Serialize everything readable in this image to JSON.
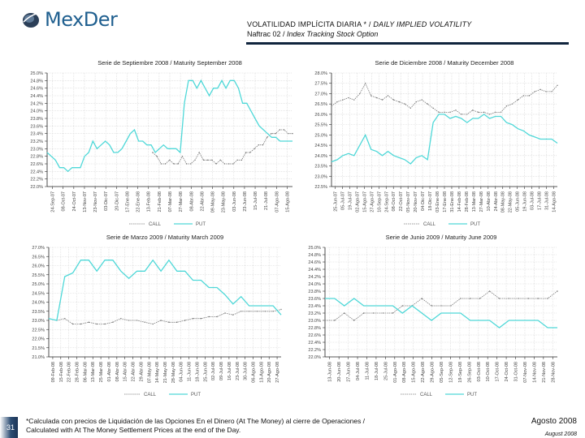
{
  "logo": {
    "name": "MexDer"
  },
  "header": {
    "title_es": "VOLATILIDAD IMPLÍCITA DIARIA * / ",
    "title_en": "DAILY IMPLIED VOLATILITY",
    "sub_es": "Naftrac 02 / ",
    "sub_en": "Index Tracking Stock Option"
  },
  "colors": {
    "call": "#777777",
    "put": "#4fd8d8",
    "rule": "#10243d",
    "grid": "#d6d6d6"
  },
  "footer": {
    "page_number": "31",
    "note_line1": "*Calculada con precios de Liquidación de las Opciones En el Dinero (At The Money) al cierre de Operaciones /",
    "note_line2": "Calculated with At The Money Settlement Prices at the end of the Day.",
    "date_es": "Agosto 2008",
    "date_en": "August 2008"
  },
  "chart_data": [
    {
      "type": "line",
      "title": "Serie de Septiembre 2008 / Maturity September 2008",
      "yticks": [
        "25.0%",
        "24.8%",
        "24.6%",
        "24.4%",
        "24.2%",
        "24.0%",
        "23.8%",
        "23.6%",
        "23.4%",
        "23.2%",
        "23.0%",
        "22.8%",
        "22.6%",
        "22.4%",
        "22.2%",
        "22.0%"
      ],
      "ylim": [
        22.0,
        25.0
      ],
      "xticks": [
        "24-Sep-07",
        "08-Oct-07",
        "24-Oct-07",
        "13-Nov-07",
        "23-Nov-07",
        "03-Dic-07",
        "20-Dic-07",
        "17-Ene-08",
        "22-Ene-08",
        "13-Feb-08",
        "21-Feb-08",
        "07-Mar-08",
        "27-Mar-08",
        "08-Abr-08",
        "22-Abr-08",
        "09-May-08",
        "23-May-08",
        "03-Jun-08",
        "23-Jun-08",
        "15-Jul-08",
        "21-Jul-08",
        "07-Ago-08",
        "15-Ago-08"
      ],
      "legend": [
        "CALL",
        "PUT"
      ],
      "series": [
        {
          "name": "CALL",
          "x_start": 0.43,
          "values": [
            22.9,
            22.8,
            22.6,
            22.6,
            22.7,
            22.6,
            22.6,
            22.8,
            22.6,
            22.6,
            22.7,
            22.9,
            22.7,
            22.7,
            22.7,
            22.6,
            22.7,
            22.6,
            22.6,
            22.6,
            22.7,
            22.7,
            22.9,
            22.9,
            23.0,
            23.1,
            23.1,
            23.3,
            23.4,
            23.4,
            23.5,
            23.5,
            23.4,
            23.4
          ]
        },
        {
          "name": "PUT",
          "x_start": 0.0,
          "values": [
            22.9,
            22.8,
            22.7,
            22.5,
            22.5,
            22.4,
            22.5,
            22.5,
            22.5,
            22.8,
            22.9,
            23.2,
            23.0,
            23.1,
            23.2,
            23.1,
            22.9,
            22.9,
            23.0,
            23.2,
            23.4,
            23.5,
            23.2,
            23.2,
            23.1,
            23.1,
            22.9,
            23.0,
            23.1,
            23.0,
            23.0,
            23.0,
            22.9,
            24.2,
            24.8,
            24.8,
            24.6,
            24.8,
            24.6,
            24.4,
            24.6,
            24.6,
            24.8,
            24.6,
            24.8,
            24.8,
            24.6,
            24.2,
            24.2,
            24.0,
            23.8,
            23.6,
            23.5,
            23.4,
            23.3,
            23.3,
            23.2,
            23.2,
            23.2,
            23.2
          ]
        }
      ]
    },
    {
      "type": "line",
      "title": "Serie de Diciembre 2008 / Maturity December 2008",
      "yticks": [
        "28.0%",
        "27.5%",
        "27.0%",
        "26.5%",
        "26.0%",
        "25.5%",
        "25.0%",
        "24.5%",
        "24.0%",
        "23.5%",
        "23.0%",
        "22.5%"
      ],
      "ylim": [
        22.5,
        28.0
      ],
      "xticks": [
        "25-Jun-07",
        "05-Jul-07",
        "19-Jul-07",
        "02-Ago-07",
        "15-Ago-07",
        "27-Ago-07",
        "10-Sep-07",
        "24-Sep-07",
        "08-Oct-07",
        "22-Oct-07",
        "05-Nov-07",
        "20-Nov-07",
        "04-Dic-07",
        "18-Dic-07",
        "03-Ene-08",
        "17-Ene-08",
        "31-Ene-08",
        "14-Feb-08",
        "28-Feb-08",
        "13-Mar-08",
        "27-Mar-08",
        "10-Abr-08",
        "24-Abr-08",
        "08-May-08",
        "22-May-08",
        "05-Jun-08",
        "19-Jun-08",
        "03-Jul-08",
        "17-Jul-08",
        "31-Jul-08",
        "14-Ago-08"
      ],
      "legend": [
        "CALL",
        "PUT"
      ],
      "series": [
        {
          "name": "CALL",
          "x_start": 0.0,
          "values": [
            26.4,
            26.6,
            26.7,
            26.8,
            26.7,
            27.0,
            27.5,
            26.9,
            26.8,
            26.7,
            26.9,
            26.7,
            26.6,
            26.5,
            26.3,
            26.6,
            26.7,
            26.5,
            26.3,
            26.1,
            26.1,
            26.1,
            26.2,
            26.0,
            26.0,
            26.2,
            26.1,
            26.1,
            26.0,
            26.1,
            26.1,
            26.4,
            26.5,
            26.7,
            26.9,
            26.9,
            27.1,
            27.2,
            27.1,
            27.1,
            27.4
          ]
        },
        {
          "name": "PUT",
          "x_start": 0.0,
          "values": [
            23.7,
            23.8,
            24.0,
            24.1,
            24.0,
            24.5,
            25.0,
            24.3,
            24.2,
            24.0,
            24.2,
            24.0,
            23.9,
            23.8,
            23.6,
            23.9,
            24.0,
            23.8,
            25.6,
            26.0,
            26.0,
            25.8,
            25.9,
            25.8,
            25.6,
            25.8,
            25.8,
            26.0,
            25.8,
            25.9,
            25.9,
            25.6,
            25.5,
            25.3,
            25.2,
            25.0,
            24.9,
            24.8,
            24.8,
            24.8,
            24.6
          ]
        }
      ]
    },
    {
      "type": "line",
      "title": "Serie de Marzo 2009 / Maturity March 2009",
      "yticks": [
        "27.0%",
        "26.5%",
        "26.0%",
        "25.5%",
        "25.0%",
        "24.5%",
        "24.0%",
        "23.5%",
        "23.0%",
        "22.5%",
        "22.0%",
        "21.5%",
        "21.0%"
      ],
      "ylim": [
        21.0,
        27.0
      ],
      "xticks": [
        "09-Feb-08",
        "15-Feb-08",
        "22-Feb-08",
        "28-Feb-08",
        "06-Mar-08",
        "13-Mar-08",
        "25-Mar-08",
        "01-Abr-08",
        "08-Abr-08",
        "15-Abr-08",
        "22-Abr-08",
        "29-Abr-08",
        "07-May-08",
        "14-May-08",
        "21-May-08",
        "28-May-08",
        "04-Jun-08",
        "11-Jun-08",
        "18-Jun-08",
        "25-Jun-08",
        "02-Jul-08",
        "09-Jul-08",
        "16-Jul-08",
        "23-Jul-08",
        "30-Jul-08",
        "06-Ago-08",
        "13-Ago-08",
        "20-Ago-08",
        "27-Ago-08"
      ],
      "legend": [
        "CALL",
        "PUT"
      ],
      "series": [
        {
          "name": "CALL",
          "x_start": 0.0,
          "values": [
            23.1,
            23.0,
            23.1,
            22.8,
            22.8,
            22.9,
            22.8,
            22.8,
            22.9,
            23.1,
            23.0,
            23.0,
            22.9,
            22.8,
            23.0,
            22.9,
            22.9,
            23.0,
            23.1,
            23.1,
            23.2,
            23.2,
            23.4,
            23.3,
            23.5,
            23.5,
            23.5,
            23.5,
            23.5,
            23.6
          ]
        },
        {
          "name": "PUT",
          "x_start": 0.0,
          "values": [
            23.1,
            23.0,
            25.4,
            25.6,
            26.3,
            26.3,
            25.7,
            26.3,
            26.3,
            25.7,
            25.3,
            25.7,
            25.7,
            26.3,
            25.7,
            26.3,
            25.7,
            25.7,
            25.2,
            25.2,
            24.8,
            24.8,
            24.4,
            23.9,
            24.3,
            23.8,
            23.8,
            23.8,
            23.8,
            23.3
          ]
        }
      ]
    },
    {
      "type": "line",
      "title": "Serie de Junio 2009 / Maturity June 2009",
      "yticks": [
        "25.0%",
        "24.8%",
        "24.6%",
        "24.4%",
        "24.2%",
        "24.0%",
        "23.8%",
        "23.6%",
        "23.4%",
        "23.2%",
        "23.0%",
        "22.8%",
        "22.6%",
        "22.4%",
        "22.2%",
        "22.0%"
      ],
      "ylim": [
        22.0,
        25.0
      ],
      "xticks": [
        "13-Jun-08",
        "20-Jun-08",
        "27-Jun-08",
        "04-Jul-08",
        "11-Jul-08",
        "18-Jul-08",
        "25-Jul-08",
        "01-Ago-08",
        "08-Ago-08",
        "15-Ago-08",
        "22-Ago-08",
        "29-Ago-08",
        "05-Sep-08",
        "12-Sep-08",
        "19-Sep-08",
        "26-Sep-08",
        "03-Oct-08",
        "10-Oct-08",
        "17-Oct-08",
        "24-Oct-08",
        "31-Oct-08",
        "07-Nov-08",
        "14-Nov-08",
        "21-Nov-08",
        "28-Nov-08"
      ],
      "legend": [
        "CALL",
        "PUT"
      ],
      "series": [
        {
          "name": "CALL",
          "x_start": 0.0,
          "values": [
            23.0,
            23.0,
            23.2,
            23.0,
            23.2,
            23.2,
            23.2,
            23.2,
            23.4,
            23.4,
            23.6,
            23.4,
            23.4,
            23.4,
            23.6,
            23.6,
            23.6,
            23.8,
            23.6,
            23.6,
            23.6,
            23.6,
            23.6,
            23.6,
            23.8
          ]
        },
        {
          "name": "PUT",
          "x_start": 0.0,
          "values": [
            23.6,
            23.6,
            23.4,
            23.6,
            23.4,
            23.4,
            23.4,
            23.4,
            23.2,
            23.4,
            23.2,
            23.0,
            23.2,
            23.2,
            23.2,
            23.0,
            23.0,
            23.0,
            22.8,
            23.0,
            23.0,
            23.0,
            23.0,
            22.8,
            22.8
          ]
        }
      ]
    }
  ]
}
